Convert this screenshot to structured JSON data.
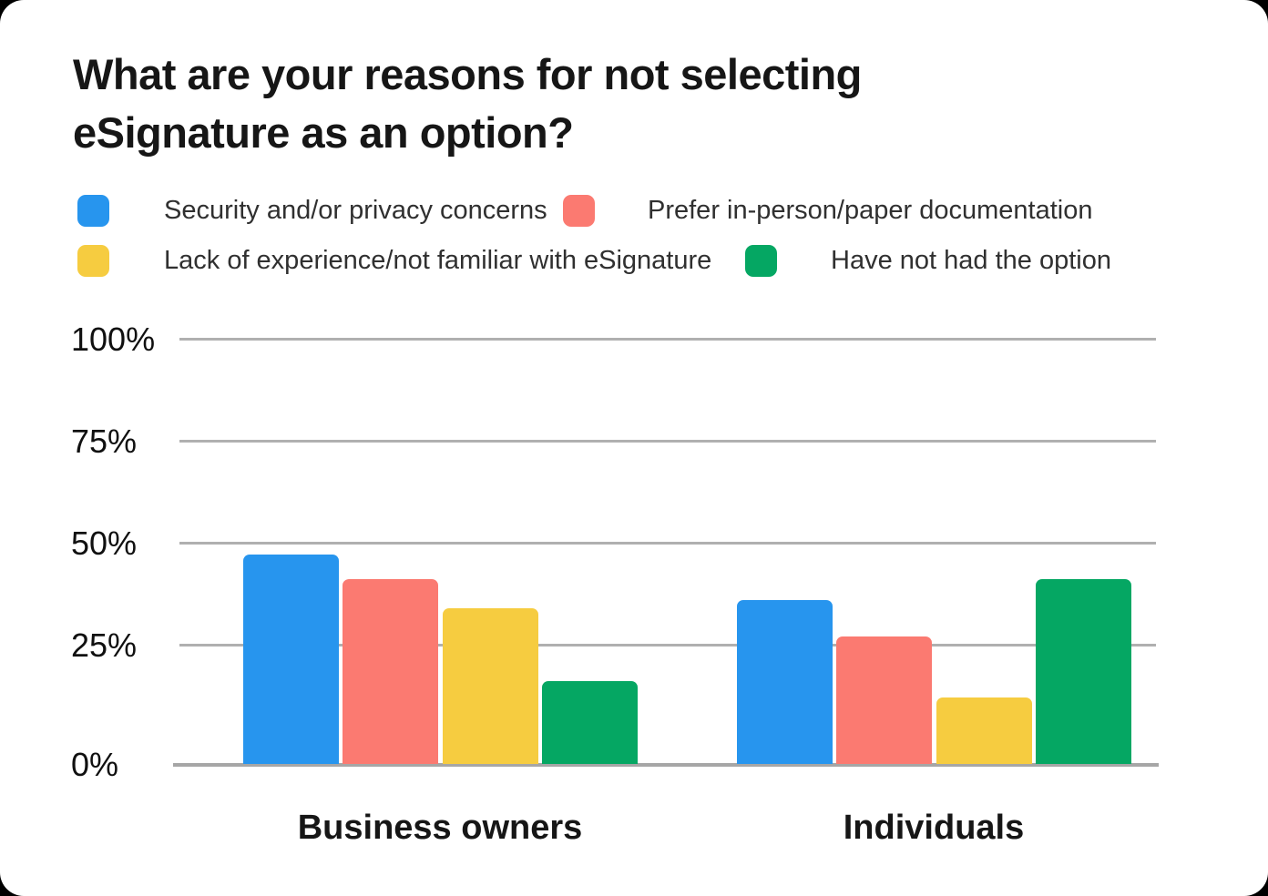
{
  "page": {
    "background_color": "#000000",
    "card_background_color": "#ffffff"
  },
  "title": {
    "line1": "What are your reasons for not selecting",
    "line2": "eSignature as an option?"
  },
  "colors": {
    "gridline": "#b0b0b0",
    "axis_line": "#a6a6a6",
    "title_text": "#161616",
    "legend_text": "#303030",
    "tick_text": "#101010"
  },
  "chart_data": {
    "type": "bar",
    "title": "What are your reasons for not selecting eSignature as an option?",
    "categories": [
      "Business owners",
      "Individuals"
    ],
    "series": [
      {
        "name": "Security and/or privacy concerns",
        "color": "#2795EE",
        "values": [
          47,
          36
        ]
      },
      {
        "name": "Prefer in-person/paper documentation",
        "color": "#FB7A71",
        "values": [
          41,
          27
        ]
      },
      {
        "name": "Lack of experience/not familiar with eSignature",
        "color": "#F6CC40",
        "values": [
          34,
          12
        ]
      },
      {
        "name": "Have not had the option",
        "color": "#05A763",
        "values": [
          16,
          41
        ]
      }
    ],
    "ylim": [
      0,
      100
    ],
    "ytick_labels_top_to_bottom": [
      "100%",
      "75%",
      "50%",
      "25%",
      "0%"
    ],
    "grid": true,
    "legend_position": "top-left, two rows"
  }
}
